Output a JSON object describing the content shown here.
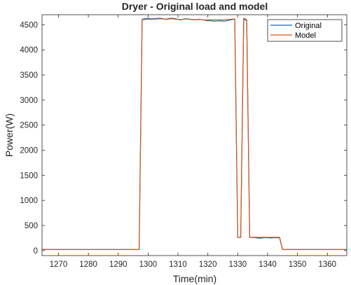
{
  "chart_data": {
    "type": "line",
    "title": "Dryer - Original load and model",
    "xlabel": "Time(min)",
    "ylabel": "Power(W)",
    "xlim": [
      1264.5,
      1366.5
    ],
    "ylim": [
      -100,
      4700
    ],
    "xticks": [
      1270,
      1280,
      1290,
      1300,
      1310,
      1320,
      1330,
      1340,
      1350,
      1360
    ],
    "yticks": [
      0,
      500,
      1000,
      1500,
      2000,
      2500,
      3000,
      3500,
      4000,
      4500
    ],
    "grid": false,
    "legend_position": "top-right",
    "series": [
      {
        "name": "Original",
        "color": "#0072BD",
        "x": [
          1264.5,
          1297,
          1298,
          1299,
          1300,
          1301,
          1302,
          1303,
          1304,
          1305,
          1306,
          1307,
          1308,
          1309,
          1310,
          1311,
          1312,
          1313,
          1314,
          1315,
          1316,
          1317,
          1318,
          1319,
          1320,
          1321,
          1322,
          1323,
          1324,
          1325,
          1326,
          1327,
          1328,
          1329,
          1330,
          1331,
          1332,
          1333,
          1334,
          1335,
          1336,
          1337,
          1338,
          1339,
          1340,
          1341,
          1342,
          1343,
          1344,
          1345,
          1346,
          1366.5
        ],
        "y": [
          20,
          20,
          4610,
          4620,
          4625,
          4615,
          4620,
          4625,
          4630,
          4620,
          4610,
          4625,
          4630,
          4620,
          4610,
          4600,
          4615,
          4620,
          4610,
          4605,
          4600,
          4610,
          4600,
          4590,
          4580,
          4585,
          4570,
          4575,
          4580,
          4570,
          4575,
          4590,
          4600,
          4610,
          260,
          260,
          4610,
          4580,
          260,
          260,
          255,
          245,
          250,
          255,
          255,
          250,
          255,
          255,
          255,
          20,
          20,
          20
        ]
      },
      {
        "name": "Model",
        "color": "#D95319",
        "x": [
          1264.5,
          1297,
          1298,
          1299,
          1300,
          1301,
          1302,
          1303,
          1304,
          1305,
          1306,
          1307,
          1308,
          1309,
          1310,
          1311,
          1312,
          1313,
          1314,
          1315,
          1316,
          1317,
          1318,
          1319,
          1320,
          1321,
          1322,
          1323,
          1324,
          1325,
          1326,
          1327,
          1328,
          1329,
          1330,
          1331,
          1332,
          1333,
          1334,
          1335,
          1336,
          1337,
          1338,
          1339,
          1340,
          1341,
          1342,
          1343,
          1344,
          1345,
          1346,
          1366.5
        ],
        "y": [
          20,
          20,
          4600,
          4605,
          4610,
          4605,
          4610,
          4615,
          4620,
          4615,
          4605,
          4615,
          4620,
          4610,
          4605,
          4595,
          4610,
          4615,
          4605,
          4600,
          4595,
          4605,
          4600,
          4595,
          4600,
          4600,
          4595,
          4600,
          4600,
          4595,
          4600,
          4605,
          4610,
          4615,
          265,
          265,
          4630,
          4600,
          265,
          265,
          265,
          265,
          265,
          265,
          265,
          265,
          265,
          265,
          265,
          20,
          20,
          20
        ]
      }
    ]
  }
}
